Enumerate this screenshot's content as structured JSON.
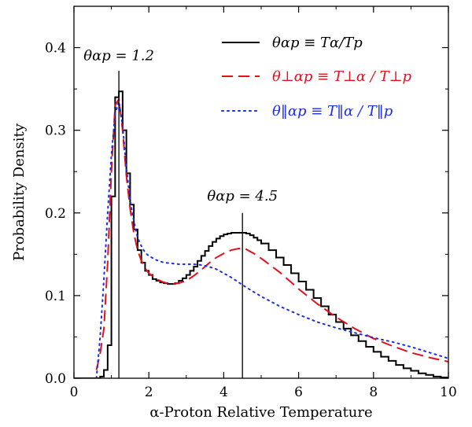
{
  "chart_data": {
    "type": "line",
    "xlabel": "α-Proton Relative Temperature",
    "ylabel": "Probability Density",
    "xlim": [
      0,
      10
    ],
    "ylim": [
      0,
      0.45
    ],
    "x_ticks": [
      "0",
      "2",
      "4",
      "6",
      "8",
      "10"
    ],
    "y_ticks": [
      "0.0",
      "0.1",
      "0.2",
      "0.3",
      "0.4"
    ],
    "grid": false,
    "legend_position": "top-right",
    "series": [
      {
        "name": "θαp ≡ Tα/Tp",
        "color": "#000000",
        "style": "solid-step",
        "x": [
          0.0,
          0.1,
          0.2,
          0.3,
          0.4,
          0.5,
          0.6,
          0.7,
          0.8,
          0.9,
          1.0,
          1.1,
          1.2,
          1.3,
          1.4,
          1.5,
          1.6,
          1.7,
          1.8,
          1.9,
          2.0,
          2.1,
          2.2,
          2.3,
          2.4,
          2.5,
          2.6,
          2.7,
          2.8,
          2.9,
          3.0,
          3.1,
          3.2,
          3.3,
          3.4,
          3.5,
          3.6,
          3.7,
          3.8,
          3.9,
          4.0,
          4.1,
          4.2,
          4.3,
          4.4,
          4.5,
          4.6,
          4.7,
          4.8,
          4.9,
          5.0,
          5.2,
          5.4,
          5.6,
          5.8,
          6.0,
          6.2,
          6.4,
          6.6,
          6.8,
          7.0,
          7.2,
          7.4,
          7.6,
          7.8,
          8.0,
          8.2,
          8.4,
          8.6,
          8.8,
          9.0,
          9.2,
          9.4,
          9.6,
          9.8,
          10.0
        ],
        "values": [
          0.0,
          0.0,
          0.0,
          0.0,
          0.0,
          0.0,
          0.0,
          0.002,
          0.01,
          0.04,
          0.22,
          0.34,
          0.347,
          0.3,
          0.248,
          0.21,
          0.18,
          0.155,
          0.14,
          0.13,
          0.125,
          0.12,
          0.118,
          0.116,
          0.115,
          0.114,
          0.114,
          0.115,
          0.118,
          0.121,
          0.125,
          0.13,
          0.135,
          0.142,
          0.148,
          0.154,
          0.16,
          0.165,
          0.169,
          0.172,
          0.174,
          0.175,
          0.176,
          0.176,
          0.176,
          0.176,
          0.175,
          0.173,
          0.17,
          0.167,
          0.163,
          0.155,
          0.146,
          0.137,
          0.127,
          0.117,
          0.107,
          0.097,
          0.087,
          0.077,
          0.068,
          0.06,
          0.052,
          0.045,
          0.038,
          0.032,
          0.026,
          0.021,
          0.016,
          0.012,
          0.009,
          0.006,
          0.004,
          0.002,
          0.001,
          0.0
        ]
      },
      {
        "name": "θ⊥αp ≡ T⊥α / T⊥p",
        "color": "#e3111b",
        "style": "dashed",
        "x": [
          0.6,
          0.7,
          0.8,
          0.9,
          1.0,
          1.1,
          1.2,
          1.3,
          1.4,
          1.5,
          1.6,
          1.7,
          1.8,
          1.9,
          2.0,
          2.2,
          2.4,
          2.6,
          2.8,
          3.0,
          3.2,
          3.4,
          3.6,
          3.8,
          4.0,
          4.2,
          4.4,
          4.6,
          4.8,
          5.0,
          5.5,
          6.0,
          6.5,
          7.0,
          7.5,
          8.0,
          8.5,
          9.0,
          9.5,
          10.0
        ],
        "values": [
          0.01,
          0.03,
          0.06,
          0.14,
          0.25,
          0.33,
          0.338,
          0.3,
          0.245,
          0.205,
          0.175,
          0.155,
          0.142,
          0.133,
          0.127,
          0.12,
          0.116,
          0.114,
          0.115,
          0.118,
          0.124,
          0.131,
          0.139,
          0.146,
          0.151,
          0.155,
          0.157,
          0.156,
          0.151,
          0.145,
          0.128,
          0.108,
          0.09,
          0.074,
          0.06,
          0.048,
          0.039,
          0.031,
          0.025,
          0.02
        ]
      },
      {
        "name": "θ‖αp ≡ T‖α / T‖p",
        "color": "#1b2fe0",
        "style": "dotted",
        "x": [
          0.6,
          0.7,
          0.8,
          0.9,
          1.0,
          1.1,
          1.2,
          1.3,
          1.4,
          1.5,
          1.6,
          1.7,
          1.8,
          1.9,
          2.0,
          2.2,
          2.4,
          2.6,
          2.8,
          3.0,
          3.2,
          3.4,
          3.6,
          3.8,
          4.0,
          4.2,
          4.4,
          4.6,
          5.0,
          5.5,
          6.0,
          6.5,
          7.0,
          7.5,
          8.0,
          8.5,
          9.0,
          9.5,
          10.0
        ],
        "values": [
          0.0,
          0.05,
          0.12,
          0.2,
          0.27,
          0.32,
          0.335,
          0.305,
          0.255,
          0.215,
          0.19,
          0.17,
          0.16,
          0.152,
          0.148,
          0.143,
          0.14,
          0.139,
          0.138,
          0.138,
          0.138,
          0.137,
          0.135,
          0.132,
          0.127,
          0.122,
          0.116,
          0.11,
          0.099,
          0.087,
          0.077,
          0.068,
          0.061,
          0.055,
          0.049,
          0.044,
          0.038,
          0.031,
          0.024
        ]
      }
    ],
    "annotations": [
      {
        "x": 1.2,
        "label": "θαp = 1.2"
      },
      {
        "x": 4.5,
        "label": "θαp = 4.5"
      }
    ]
  }
}
